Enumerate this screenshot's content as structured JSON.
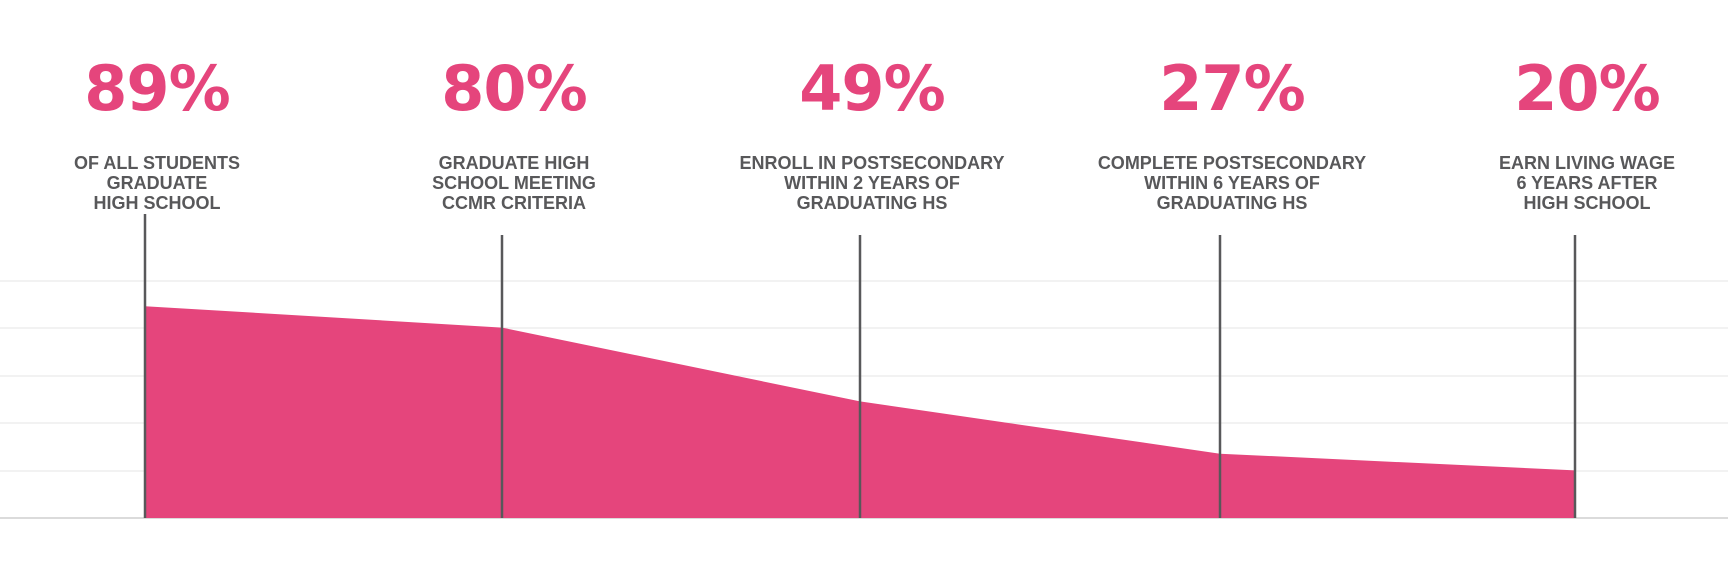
{
  "chart_data": {
    "type": "area",
    "title": "",
    "xlabel": "",
    "ylabel": "",
    "ylim": [
      0,
      100
    ],
    "grid": true,
    "legend": "none",
    "stages": [
      {
        "value": 89,
        "value_label": "89%",
        "label": "OF ALL STUDENTS\nGRADUATE\nHIGH SCHOOL"
      },
      {
        "value": 80,
        "value_label": "80%",
        "label": "GRADUATE HIGH\nSCHOOL MEETING\nCCMR CRITERIA"
      },
      {
        "value": 49,
        "value_label": "49%",
        "label": "ENROLL IN POSTSECONDARY\nWITHIN 2 YEARS OF\nGRADUATING HS"
      },
      {
        "value": 27,
        "value_label": "27%",
        "label": "COMPLETE POSTSECONDARY\nWITHIN 6 YEARS OF\nGRADUATING HS"
      },
      {
        "value": 20,
        "value_label": "20%",
        "label": "EARN LIVING WAGE\n6 YEARS AFTER\nHIGH SCHOOL"
      }
    ]
  },
  "colors": {
    "accent": "#e5457c",
    "label": "#58585a",
    "marker": "#58585a",
    "grid": "#e6e6e6",
    "baseline": "#cfcfcf"
  }
}
